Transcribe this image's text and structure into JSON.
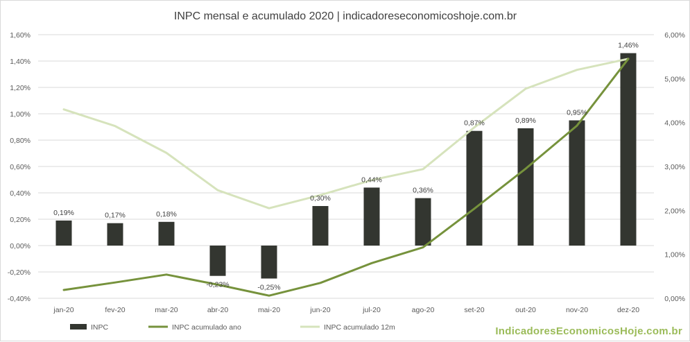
{
  "chart_data": {
    "type": "bar",
    "title": "INPC mensal e acumulado 2020 | indicadoreseconomicoshoje.com.br",
    "categories": [
      "jan-20",
      "fev-20",
      "mar-20",
      "abr-20",
      "mai-20",
      "jun-20",
      "jul-20",
      "ago-20",
      "set-20",
      "out-20",
      "nov-20",
      "dez-20"
    ],
    "bar_series": {
      "name": "INPC",
      "values": [
        0.19,
        0.17,
        0.18,
        -0.23,
        -0.25,
        0.3,
        0.44,
        0.36,
        0.87,
        0.89,
        0.95,
        1.46
      ],
      "labels": [
        "0,19%",
        "0,17%",
        "0,18%",
        "-0,23%",
        "-0,25%",
        "0,30%",
        "0,44%",
        "0,36%",
        "0,87%",
        "0,89%",
        "0,95%",
        "1,46%"
      ],
      "color": "#333630"
    },
    "line_series": [
      {
        "name": "INPC acumulado ano",
        "values": [
          0.19,
          0.36,
          0.54,
          0.31,
          0.06,
          0.35,
          0.8,
          1.16,
          2.04,
          2.95,
          3.93,
          5.45
        ],
        "color": "#76923c",
        "axis": "right"
      },
      {
        "name": "INPC acumulado 12m",
        "values": [
          4.3,
          3.92,
          3.31,
          2.46,
          2.05,
          2.35,
          2.69,
          2.94,
          3.89,
          4.77,
          5.2,
          5.45
        ],
        "color": "#d6e3bc",
        "axis": "right"
      }
    ],
    "y_left": {
      "min": -0.4,
      "max": 1.6,
      "step": 0.2,
      "tick_labels": [
        "-0,40%",
        "-0,20%",
        "0,00%",
        "0,20%",
        "0,40%",
        "0,60%",
        "0,80%",
        "1,00%",
        "1,20%",
        "1,40%",
        "1,60%"
      ]
    },
    "y_right": {
      "min": 0,
      "max": 6,
      "step": 1,
      "tick_labels": [
        "0,00%",
        "1,00%",
        "2,00%",
        "3,00%",
        "4,00%",
        "5,00%",
        "6,00%"
      ]
    },
    "grid": true,
    "legend_position": "bottom-left"
  },
  "legend": {
    "items": [
      {
        "label": "INPC",
        "kind": "bar"
      },
      {
        "label": "INPC acumulado ano",
        "kind": "line"
      },
      {
        "label": "INPC acumulado 12m",
        "kind": "line"
      }
    ]
  },
  "watermark": {
    "text": "IndicadoresEconomicosHoje.com.br",
    "color": "#9bbb59"
  }
}
